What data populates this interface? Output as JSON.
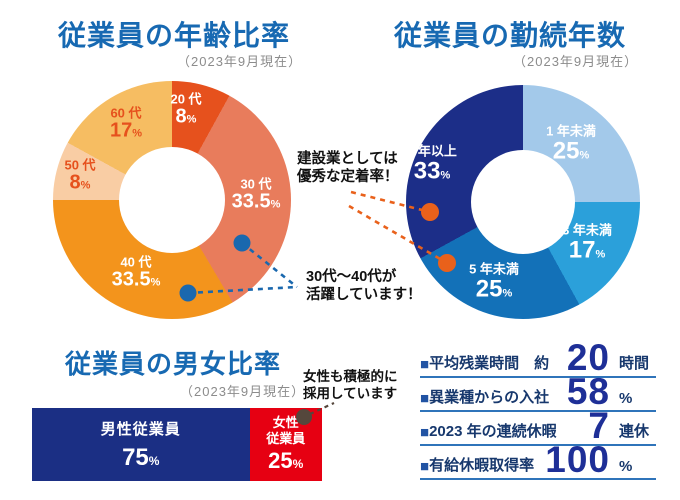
{
  "chart_data": [
    {
      "type": "pie",
      "title": "従業員の年齢比率",
      "subtitle": "（2023年9月現在）",
      "unit": "%",
      "categories": [
        "20代",
        "30代",
        "40代",
        "50代",
        "60代"
      ],
      "values": [
        8,
        33.5,
        33.5,
        8,
        17
      ],
      "colors": [
        "#e6511d",
        "#e87c5c",
        "#f3941c",
        "#f9cda4",
        "#f6bd62"
      ],
      "start_angle_deg": 0,
      "direction": "clockwise",
      "segments": [
        {
          "label": "20 代",
          "value_text": "8",
          "unit": "%"
        },
        {
          "label": "30 代",
          "value_text": "33.5",
          "unit": "%"
        },
        {
          "label": "40 代",
          "value_text": "33.5",
          "unit": "%"
        },
        {
          "label": "50 代",
          "value_text": "8",
          "unit": "%"
        },
        {
          "label": "60 代",
          "value_text": "17",
          "unit": "%"
        }
      ]
    },
    {
      "type": "pie",
      "title": "従業員の勤続年数",
      "subtitle": "（2023年9月現在）",
      "unit": "%",
      "categories": [
        "1年未満",
        "3年未満",
        "5年未満",
        "5年以上"
      ],
      "values": [
        25,
        17,
        25,
        33
      ],
      "colors": [
        "#a3c9ea",
        "#2ba0da",
        "#1371b8",
        "#1c2e88"
      ],
      "start_angle_deg": 0,
      "direction": "clockwise",
      "segments": [
        {
          "label": "1 年未満",
          "value_text": "25",
          "unit": "%"
        },
        {
          "label": "3 年未満",
          "value_text": "17",
          "unit": "%"
        },
        {
          "label": "5 年未満",
          "value_text": "25",
          "unit": "%"
        },
        {
          "label": "5 年以上",
          "value_text": "33",
          "unit": "%"
        }
      ]
    },
    {
      "type": "bar",
      "title": "従業員の男女比率",
      "subtitle": "（2023年9月現在）",
      "unit": "%",
      "categories": [
        "男性従業員",
        "女性従業員"
      ],
      "values": [
        75,
        25
      ],
      "colors": [
        "#1b2f84",
        "#e60012"
      ],
      "segments": [
        {
          "label": "男性従業員",
          "value_text": "75",
          "unit": "%"
        },
        {
          "label_line1": "女性",
          "label_line2": "従業員",
          "value_text": "25",
          "unit": "%"
        }
      ]
    },
    {
      "type": "table",
      "rows": [
        {
          "bullet": "■",
          "label": "平均残業時間　約",
          "value": "20",
          "unit": "時間"
        },
        {
          "bullet": "■",
          "label": "異業種からの入社",
          "value": "58",
          "unit": "%"
        },
        {
          "bullet": "■",
          "label": "2023 年の連続休暇",
          "value": "7",
          "unit": "連休"
        },
        {
          "bullet": "■",
          "label": "有給休暇取得率",
          "value": "100",
          "unit": "%"
        }
      ]
    }
  ],
  "annotations": {
    "retention": {
      "line1": "建設業としては",
      "line2": "優秀な定着率！"
    },
    "active_generation": {
      "line1": "30代〜40代が",
      "line2": "活躍しています！"
    },
    "women_hiring": {
      "line1": "女性も積極的に",
      "line2": "採用しています"
    }
  },
  "colors": {
    "title_blue": "#1769b2",
    "subtitle_gray": "#8c8c8c",
    "male_bar_navy": "#1b2f84",
    "female_bar_red": "#e60012",
    "stat_number_blue": "#1e2f97",
    "stat_label_navy": "#17386d",
    "stat_underline_blue": "#2f74ba",
    "blue_connector": "#1a68ae",
    "orange_connector": "#e9611b",
    "dark_connector": "#55473c"
  }
}
